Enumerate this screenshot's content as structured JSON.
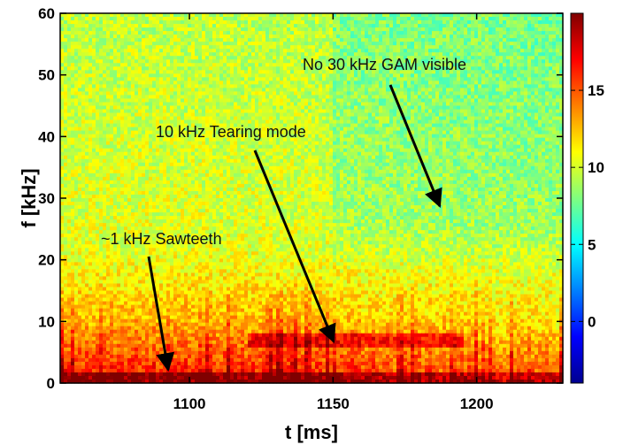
{
  "chart_data": {
    "type": "heatmap",
    "title": "",
    "xlabel": "t [ms]",
    "ylabel": "f [kHz]",
    "xlim": [
      1055,
      1230
    ],
    "ylim": [
      0,
      60
    ],
    "xticks": [
      1100,
      1150,
      1200
    ],
    "yticks": [
      0,
      10,
      20,
      30,
      40,
      50,
      60
    ],
    "colormap": "jet",
    "colorbar": {
      "range": [
        -4,
        20
      ],
      "ticks": [
        0,
        5,
        10,
        15
      ]
    },
    "grid": false,
    "annotations": [
      {
        "text": "No 30  kHz GAM visible",
        "target": [
          1186,
          29
        ]
      },
      {
        "text": "10 kHz Tearing mode",
        "target": [
          1148,
          7
        ]
      },
      {
        "text": "~1 kHz Sawteeth",
        "target": [
          1088,
          1
        ]
      }
    ]
  },
  "colors": {
    "low": "#00008f",
    "mid": "#ffff66",
    "high": "#7f0000",
    "arrow": "#000000"
  }
}
